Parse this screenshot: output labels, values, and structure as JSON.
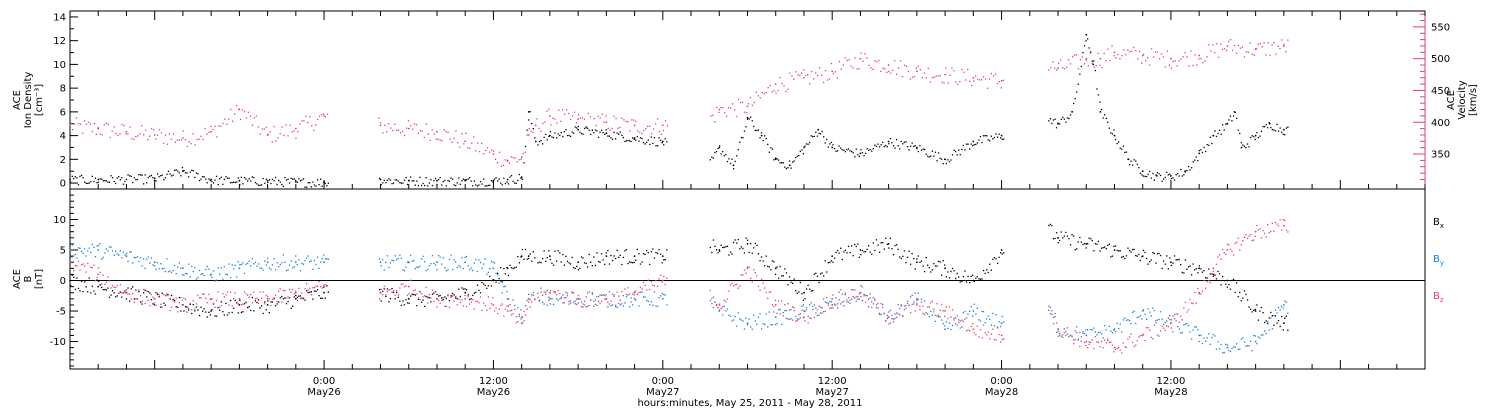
{
  "chart_data": [
    {
      "type": "scatter",
      "panel": "top",
      "ylabel_lines": [
        "ACE",
        "Ion Density",
        "[cm⁻³]"
      ],
      "y2label_lines": [
        "ACE",
        "Velocity",
        "[km/s]"
      ],
      "ylim": [
        -0.5,
        14.5
      ],
      "y2lim": [
        295,
        575
      ],
      "yticks": [
        "0",
        "2",
        "4",
        "6",
        "8",
        "10",
        "12",
        "14"
      ],
      "y2ticks": [
        "350",
        "400",
        "450",
        "500",
        "550"
      ],
      "x_range_hours": [
        -18,
        78
      ],
      "colors": {
        "density": "#000000",
        "velocity": "#e8406a"
      },
      "series": [
        {
          "key": "density",
          "axis": "left",
          "x": [
            -18,
            -16,
            -12,
            -10,
            -8,
            -6,
            -4,
            -2,
            0,
            4,
            6,
            8,
            10,
            12,
            13,
            14,
            14.5,
            15,
            16,
            18,
            20,
            22,
            24,
            27,
            28,
            29,
            30,
            31,
            32,
            33,
            34,
            35,
            36,
            38,
            40,
            42,
            44,
            46,
            48,
            51,
            52,
            53,
            54,
            54.5,
            55,
            56,
            57,
            58,
            59,
            60,
            61,
            62,
            63,
            64,
            64.5,
            65,
            66,
            67,
            68
          ],
          "y": [
            0.3,
            0.3,
            0.4,
            1.0,
            0.3,
            0.2,
            0.2,
            0.1,
            0.1,
            0.3,
            0.2,
            0.2,
            0.2,
            0.2,
            0.3,
            0.5,
            6.0,
            3.5,
            4.0,
            4.5,
            4.2,
            3.8,
            3.5,
            1.0,
            3.0,
            1.5,
            5.5,
            4.0,
            2.0,
            1.5,
            3.0,
            4.5,
            3.0,
            2.5,
            3.5,
            3.0,
            2.0,
            3.5,
            4.0,
            5.5,
            5.0,
            6.0,
            12.5,
            10.0,
            6.0,
            4.0,
            2.0,
            1.0,
            0.6,
            0.6,
            1.0,
            2.5,
            4.0,
            5.0,
            6.0,
            3.0,
            4.0,
            5.0,
            4.5
          ]
        },
        {
          "key": "velocity",
          "axis": "right",
          "x": [
            -18,
            -16,
            -14,
            -12,
            -10,
            -8,
            -6,
            -4,
            -2,
            0,
            4,
            6,
            8,
            10,
            12,
            13,
            14,
            14.5,
            15,
            16,
            18,
            20,
            22,
            24,
            27,
            28,
            30,
            32,
            34,
            36,
            38,
            40,
            42,
            44,
            46,
            48,
            51,
            52,
            54,
            55,
            56,
            58,
            60,
            62,
            64,
            66,
            68
          ],
          "y": [
            395,
            390,
            385,
            380,
            375,
            385,
            420,
            380,
            390,
            410,
            395,
            390,
            385,
            370,
            350,
            340,
            345,
            380,
            395,
            410,
            405,
            400,
            395,
            395,
            400,
            420,
            425,
            460,
            470,
            480,
            500,
            490,
            480,
            475,
            470,
            465,
            490,
            485,
            500,
            500,
            510,
            505,
            500,
            505,
            520,
            515,
            520
          ]
        }
      ]
    },
    {
      "type": "scatter",
      "panel": "bottom",
      "ylabel_lines": [
        "ACE",
        "B",
        "[nT]"
      ],
      "ylim": [
        -14.5,
        15
      ],
      "yticks": [
        "-10",
        "-5",
        "0",
        "5",
        "10"
      ],
      "zero_line": true,
      "x_range_hours": [
        -18,
        78
      ],
      "colors": {
        "Bx": "#000000",
        "By": "#1a80e0",
        "Bz": "#e8406a"
      },
      "legend": [
        {
          "key": "Bx",
          "label": "B",
          "sub": "x"
        },
        {
          "key": "By",
          "label": "B",
          "sub": "y"
        },
        {
          "key": "Bz",
          "label": "B",
          "sub": "z"
        }
      ],
      "series": [
        {
          "key": "Bx",
          "x": [
            -18,
            -16,
            -14,
            -12,
            -10,
            -8,
            -6,
            -4,
            -2,
            0,
            4,
            6,
            8,
            10,
            12,
            13,
            14,
            14.5,
            16,
            18,
            20,
            22,
            24,
            27,
            28,
            30,
            32,
            34,
            36,
            38,
            40,
            42,
            44,
            46,
            48,
            51,
            52,
            54,
            56,
            58,
            60,
            62,
            63,
            64,
            66,
            68
          ],
          "y": [
            0,
            -1,
            -2,
            -3,
            -4,
            -5,
            -4,
            -4,
            -3,
            -2,
            -2,
            -3,
            -3,
            -2,
            0,
            2,
            4,
            4,
            4,
            3,
            4,
            4,
            4,
            6,
            5,
            6,
            2,
            -2,
            4,
            5,
            6,
            3,
            2,
            0,
            5,
            9,
            7,
            6,
            5,
            4,
            3,
            2,
            1,
            0,
            -5,
            -7
          ]
        },
        {
          "key": "By",
          "x": [
            -18,
            -16,
            -14,
            -12,
            -10,
            -8,
            -6,
            -4,
            -2,
            0,
            4,
            6,
            8,
            10,
            12,
            13,
            14,
            14.5,
            16,
            18,
            20,
            22,
            24,
            27,
            28,
            30,
            32,
            34,
            36,
            38,
            40,
            42,
            44,
            46,
            48,
            51,
            52,
            54,
            56,
            58,
            60,
            62,
            64,
            66,
            68
          ],
          "y": [
            5,
            5,
            4,
            3,
            2,
            1,
            2,
            3,
            3,
            3,
            3,
            3,
            3,
            3,
            2,
            -3,
            -6,
            -3,
            -3,
            -3,
            -3,
            -3,
            -3,
            -2,
            -5,
            -7,
            -6,
            -5,
            -4,
            -2,
            -6,
            -3,
            -8,
            -5,
            -7,
            -3,
            -8,
            -9,
            -8,
            -5,
            -7,
            -9,
            -11,
            -10,
            -4
          ]
        },
        {
          "key": "Bz",
          "x": [
            -18,
            -16,
            -14,
            -12,
            -10,
            -8,
            -6,
            -4,
            -2,
            0,
            4,
            6,
            8,
            10,
            12,
            13,
            14,
            14.5,
            16,
            18,
            20,
            22,
            24,
            27,
            28,
            30,
            32,
            34,
            36,
            38,
            40,
            42,
            44,
            46,
            48,
            51,
            52,
            54,
            56,
            58,
            60,
            62,
            63,
            64,
            66,
            68
          ],
          "y": [
            3,
            1,
            -2,
            -3,
            -4,
            -3,
            -3,
            -3,
            -2,
            -1,
            -2,
            -1,
            -3,
            -3,
            -4,
            -5,
            -7,
            -3,
            -2,
            -3,
            -3,
            -2,
            0,
            -2,
            -4,
            2,
            -4,
            -6,
            -3,
            -2,
            -6,
            -4,
            -5,
            -8,
            -9,
            -2,
            -8,
            -10,
            -11,
            -9,
            -7,
            -2,
            2,
            5,
            8,
            9
          ]
        }
      ]
    }
  ],
  "x_axis": {
    "ticks": [
      {
        "hour": 0,
        "time": "0:00",
        "date": "May26"
      },
      {
        "hour": 12,
        "time": "12:00",
        "date": "May26"
      },
      {
        "hour": 24,
        "time": "0:00",
        "date": "May27"
      },
      {
        "hour": 36,
        "time": "12:00",
        "date": "May27"
      },
      {
        "hour": 48,
        "time": "0:00",
        "date": "May28"
      },
      {
        "hour": 60,
        "time": "12:00",
        "date": "May28"
      }
    ],
    "title": "hours:minutes, May 25, 2011 - May 28, 2011"
  }
}
